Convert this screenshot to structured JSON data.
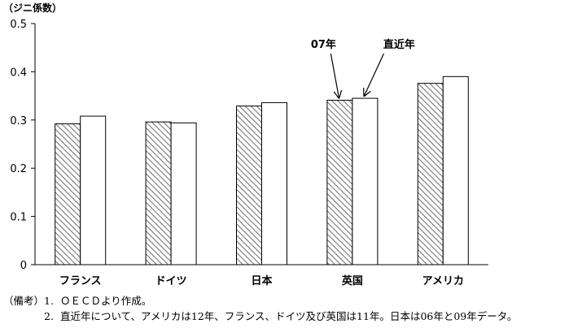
{
  "chart_data": {
    "type": "bar",
    "ylabel": "（ジニ係数）",
    "ylim": [
      0,
      0.5
    ],
    "yticks": [
      "0",
      "0.1",
      "0.2",
      "0.3",
      "0.4",
      "0.5"
    ],
    "categories": [
      "フランス",
      "ドイツ",
      "日本",
      "英国",
      "アメリカ"
    ],
    "series": [
      {
        "values": [
          0.292,
          0.296,
          0.329,
          0.341,
          0.376
        ],
        "fill": "hatched"
      },
      {
        "values": [
          0.308,
          0.294,
          0.336,
          0.345,
          0.39
        ],
        "fill": "white"
      }
    ],
    "annotations": [
      {
        "text": "07年",
        "category": "英国",
        "series": 0
      },
      {
        "text": "直近年",
        "category": "英国",
        "series": 1
      }
    ],
    "grid": false,
    "legend": "none"
  },
  "notes": {
    "heading": "（備考）",
    "items": [
      {
        "num": "1.",
        "text": "ＯＥＣＤより作成。"
      },
      {
        "num": "2.",
        "text": "直近年について、アメリカは12年、フランス、ドイツ及び英国は11年。日本は06年と09年データ。"
      }
    ]
  },
  "colors": {
    "axis": "#000000",
    "bar_border": "#000000",
    "hatch": "#777777",
    "hatch_bg": "#ffffff",
    "bar_white": "#ffffff"
  }
}
